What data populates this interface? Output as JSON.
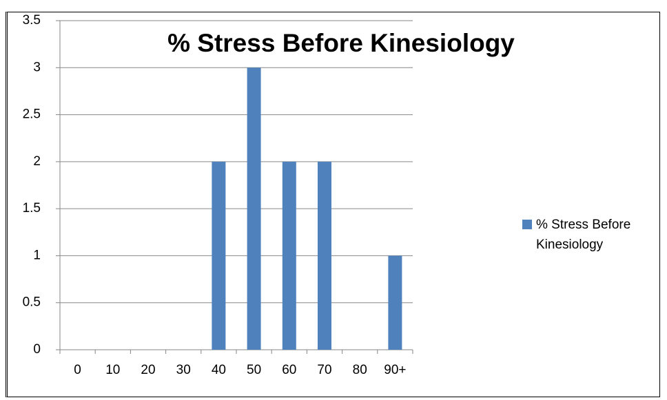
{
  "chart_data": {
    "type": "bar",
    "title": "% Stress Before Kinesiology",
    "categories": [
      "0",
      "10",
      "20",
      "30",
      "40",
      "50",
      "60",
      "70",
      "80",
      "90+"
    ],
    "series": [
      {
        "name": "% Stress Before Kinesiology",
        "color": "#4f81bd",
        "values": [
          0,
          0,
          0,
          0,
          2,
          3,
          2,
          2,
          0,
          1
        ]
      }
    ],
    "ylim": [
      0,
      3.5
    ],
    "yticks": [
      0,
      0.5,
      1,
      1.5,
      2,
      2.5,
      3,
      3.5
    ],
    "grid": true,
    "legend": "right"
  }
}
